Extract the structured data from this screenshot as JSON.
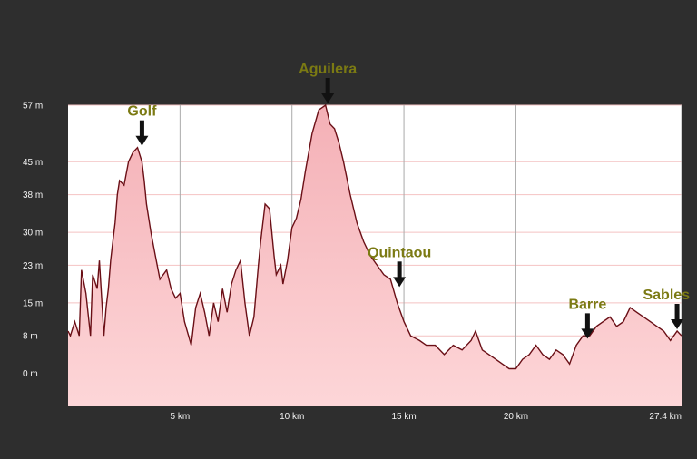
{
  "chart_data": {
    "type": "area",
    "title": "",
    "xlabel": "",
    "ylabel": "",
    "xlim": [
      0,
      27.4
    ],
    "ylim": [
      -7,
      57
    ],
    "grid": true,
    "legend": "none",
    "y_ticks": [
      {
        "value": 57,
        "label": "57 m"
      },
      {
        "value": 45,
        "label": "45 m"
      },
      {
        "value": 38,
        "label": "38 m"
      },
      {
        "value": 30,
        "label": "30 m"
      },
      {
        "value": 23,
        "label": "23 m"
      },
      {
        "value": 15,
        "label": "15 m"
      },
      {
        "value": 8,
        "label": "8 m"
      },
      {
        "value": 0,
        "label": "0 m"
      }
    ],
    "x_ticks": [
      {
        "value": 5,
        "label": "5 km"
      },
      {
        "value": 10,
        "label": "10 km"
      },
      {
        "value": 15,
        "label": "15 km"
      },
      {
        "value": 20,
        "label": "20 km"
      },
      {
        "value": 27.4,
        "label": "27.4 km"
      }
    ],
    "series": [
      {
        "x": [
          0.0,
          0.1,
          0.3,
          0.5,
          0.6,
          0.8,
          1.0,
          1.1,
          1.3,
          1.4,
          1.5,
          1.6,
          1.7,
          1.8,
          1.9,
          2.0,
          2.1,
          2.2,
          2.3,
          2.5,
          2.7,
          2.9,
          3.1,
          3.3,
          3.4,
          3.5,
          3.7,
          3.9,
          4.1,
          4.4,
          4.6,
          4.8,
          5.0,
          5.2,
          5.5,
          5.7,
          5.9,
          6.1,
          6.3,
          6.5,
          6.7,
          6.9,
          7.1,
          7.3,
          7.5,
          7.7,
          7.9,
          8.1,
          8.3,
          8.5,
          8.6,
          8.8,
          9.0,
          9.2,
          9.3,
          9.5,
          9.6,
          9.8,
          10.0,
          10.2,
          10.4,
          10.6,
          10.9,
          11.2,
          11.5,
          11.7,
          11.9,
          12.1,
          12.3,
          12.6,
          12.9,
          13.2,
          13.5,
          13.8,
          14.1,
          14.4,
          14.7,
          15.0,
          15.3,
          15.7,
          16.0,
          16.4,
          16.8,
          17.2,
          17.6,
          18.0,
          18.2,
          18.5,
          18.8,
          19.1,
          19.4,
          19.7,
          20.0,
          20.3,
          20.6,
          20.9,
          21.2,
          21.5,
          21.8,
          22.1,
          22.4,
          22.7,
          23.0,
          23.3,
          23.6,
          23.9,
          24.2,
          24.5,
          24.8,
          25.1,
          25.4,
          25.7,
          26.0,
          26.3,
          26.6,
          26.9,
          27.2,
          27.4
        ],
        "values": [
          9,
          8,
          11,
          8,
          22,
          17,
          8,
          21,
          18,
          24,
          16,
          8,
          14,
          18,
          24,
          28,
          32,
          38,
          41,
          40,
          45,
          47,
          48,
          45,
          41,
          36,
          30,
          25,
          20,
          22,
          18,
          16,
          17,
          11,
          6,
          14,
          17,
          13,
          8,
          15,
          11,
          18,
          13,
          19,
          22,
          24,
          15,
          8,
          12,
          23,
          28,
          36,
          35,
          25,
          21,
          23,
          19,
          24,
          31,
          33,
          37,
          43,
          51,
          56,
          57,
          53,
          52,
          49,
          45,
          38,
          32,
          28,
          25,
          23,
          21,
          20,
          15,
          11,
          8,
          7,
          6,
          6,
          4,
          6,
          5,
          7,
          9,
          5,
          4,
          3,
          2,
          1,
          1,
          3,
          4,
          6,
          4,
          3,
          5,
          4,
          2,
          6,
          8,
          8,
          10,
          11,
          12,
          10,
          11,
          14,
          13,
          12,
          11,
          10,
          9,
          7,
          9,
          8
        ]
      }
    ],
    "annotations": [
      {
        "label": "Golf",
        "x": 3.3,
        "y": 48
      },
      {
        "label": "Aguilera",
        "x": 11.6,
        "y": 57
      },
      {
        "label": "Quintaou",
        "x": 14.8,
        "y": 18
      },
      {
        "label": "Barre",
        "x": 23.2,
        "y": 7
      },
      {
        "label": "Sables",
        "x": 27.2,
        "y": 9
      }
    ],
    "colors": {
      "background": "#2e2e2e",
      "plot_background": "#ffffff",
      "grid_vertical": "#aaaaaa",
      "grid_horizontal": "#f4c2c2",
      "area_fill_top": "#f4b0b6",
      "area_fill_bottom": "#fdd6d8",
      "line": "#6a0f16",
      "tick_text": "#f4f4f4",
      "annotation_text": "#7b7a13",
      "arrow": "#111111"
    }
  }
}
